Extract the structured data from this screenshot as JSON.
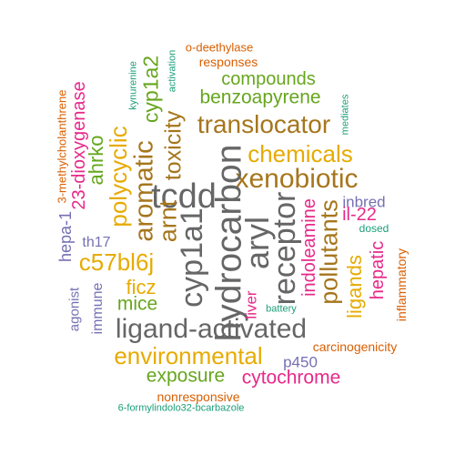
{
  "colors": {
    "gray": "#666666",
    "brown": "#a6761d",
    "gold": "#e6ab02",
    "green": "#66a61e",
    "magenta": "#e7298a",
    "purple": "#7570b3",
    "orange": "#d95f02",
    "teal": "#1b9e77"
  },
  "words": [
    {
      "text": "o-deethylase",
      "color": "orange"
    },
    {
      "text": "responses",
      "color": "orange"
    },
    {
      "text": "kynurenine",
      "color": "teal"
    },
    {
      "text": "activation",
      "color": "teal"
    },
    {
      "text": "3-methylcholanthrene",
      "color": "orange"
    },
    {
      "text": "compounds",
      "color": "green"
    },
    {
      "text": "cyp1a2",
      "color": "green"
    },
    {
      "text": "23-dioxygenase",
      "color": "magenta"
    },
    {
      "text": "benzoapyrene",
      "color": "green"
    },
    {
      "text": "mediates",
      "color": "teal"
    },
    {
      "text": "translocator",
      "color": "brown"
    },
    {
      "text": "polycyclic",
      "color": "gold"
    },
    {
      "text": "toxicity",
      "color": "brown"
    },
    {
      "text": "ahrko",
      "color": "green"
    },
    {
      "text": "aromatic",
      "color": "brown"
    },
    {
      "text": "chemicals",
      "color": "gold"
    },
    {
      "text": "xenobiotic",
      "color": "brown"
    },
    {
      "text": "tcdd",
      "color": "gray"
    },
    {
      "text": "hydrocarbon",
      "color": "gray"
    },
    {
      "text": "arnt",
      "color": "brown"
    },
    {
      "text": "inbred",
      "color": "purple"
    },
    {
      "text": "indoleamine",
      "color": "magenta"
    },
    {
      "text": "il-22",
      "color": "magenta"
    },
    {
      "text": "hepa-1",
      "color": "purple"
    },
    {
      "text": "dosed",
      "color": "teal"
    },
    {
      "text": "aryl",
      "color": "gray"
    },
    {
      "text": "cyp1a1",
      "color": "gray"
    },
    {
      "text": "receptor",
      "color": "gray"
    },
    {
      "text": "pollutants",
      "color": "brown"
    },
    {
      "text": "th17",
      "color": "purple"
    },
    {
      "text": "c57bl6j",
      "color": "gold"
    },
    {
      "text": "ligands",
      "color": "gold"
    },
    {
      "text": "hepatic",
      "color": "magenta"
    },
    {
      "text": "inflammatory",
      "color": "orange"
    },
    {
      "text": "ficz",
      "color": "gold"
    },
    {
      "text": "agonist",
      "color": "purple"
    },
    {
      "text": "immune",
      "color": "purple"
    },
    {
      "text": "mice",
      "color": "green"
    },
    {
      "text": "liver",
      "color": "magenta"
    },
    {
      "text": "battery",
      "color": "teal"
    },
    {
      "text": "ligand-activated",
      "color": "gray"
    },
    {
      "text": "environmental",
      "color": "gold"
    },
    {
      "text": "carcinogenicity",
      "color": "orange"
    },
    {
      "text": "p450",
      "color": "purple"
    },
    {
      "text": "exposure",
      "color": "green"
    },
    {
      "text": "cytochrome",
      "color": "magenta"
    },
    {
      "text": "nonresponsive",
      "color": "orange"
    },
    {
      "text": "6-formylindolo32-bcarbazole",
      "color": "teal"
    }
  ]
}
